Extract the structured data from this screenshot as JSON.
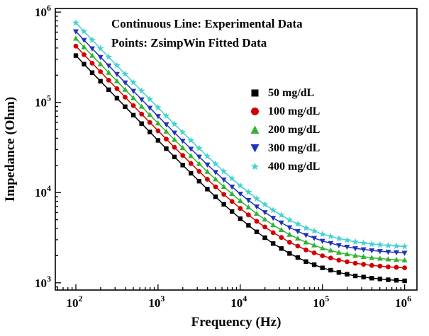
{
  "chart_data": {
    "type": "line",
    "title": "",
    "annotations": [
      "Continuous Line: Experimental Data",
      "Points: ZsimpWin Fitted Data"
    ],
    "xlabel": "Frequency (Hz)",
    "ylabel": "Impedance (Ohm)",
    "x_scale": "log",
    "y_scale": "log",
    "xlim": [
      100,
      1000000
    ],
    "ylim": [
      1000,
      1000000
    ],
    "grid": false,
    "legend_position": "inside-right",
    "x_tick_exponents": [
      2,
      3,
      4,
      5,
      6
    ],
    "y_tick_exponents": [
      3,
      4,
      5,
      6
    ],
    "x": [
      100,
      158,
      251,
      398,
      631,
      1000,
      1585,
      2512,
      3981,
      6310,
      10000,
      15849,
      25119,
      39811,
      63096,
      100000,
      158489,
      251189,
      398107,
      630957,
      1000000
    ],
    "series": [
      {
        "name": "50 mg/dL",
        "color": "#000000",
        "marker": "square",
        "values": [
          329600,
          213200,
          138000,
          89440,
          58100,
          37870,
          24810,
          16370,
          10920,
          7407,
          5136,
          3671,
          2724,
          2113,
          1719,
          1464,
          1300,
          1193,
          1125,
          1081,
          1052
        ]
      },
      {
        "name": "100 mg/dL",
        "color": "#d40000",
        "marker": "circle",
        "values": [
          419700,
          271500,
          175800,
          114000,
          74090,
          48340,
          31710,
          20970,
          14030,
          9556,
          6665,
          4800,
          3595,
          2817,
          2315,
          1991,
          1782,
          1646,
          1559,
          1503,
          1466
        ]
      },
      {
        "name": "200 mg/dL",
        "color": "#33b333",
        "marker": "triangle-up",
        "values": [
          509100,
          329300,
          213200,
          138300,
          89860,
          58630,
          38460,
          25430,
          17020,
          11590,
          8086,
          5824,
          4362,
          3418,
          2810,
          2416,
          2163,
          1998,
          1893,
          1825,
          1780
        ]
      },
      {
        "name": "300 mg/dL",
        "color": "#2233bb",
        "marker": "triangle-down",
        "values": [
          609400,
          394200,
          255300,
          165500,
          107600,
          70190,
          46050,
          30450,
          20390,
          13890,
          9693,
          6986,
          5236,
          4107,
          3379,
          2908,
          2604,
          2407,
          2281,
          2200,
          2146
        ]
      },
      {
        "name": "400 mg/dL",
        "color": "#45d1d1",
        "marker": "star",
        "values": [
          759500,
          491300,
          318000,
          206200,
          134000,
          87350,
          57260,
          37810,
          25260,
          17160,
          11930,
          8554,
          6372,
          4964,
          4057,
          3469,
          3091,
          2845,
          2688,
          2587,
          2520
        ]
      }
    ]
  }
}
